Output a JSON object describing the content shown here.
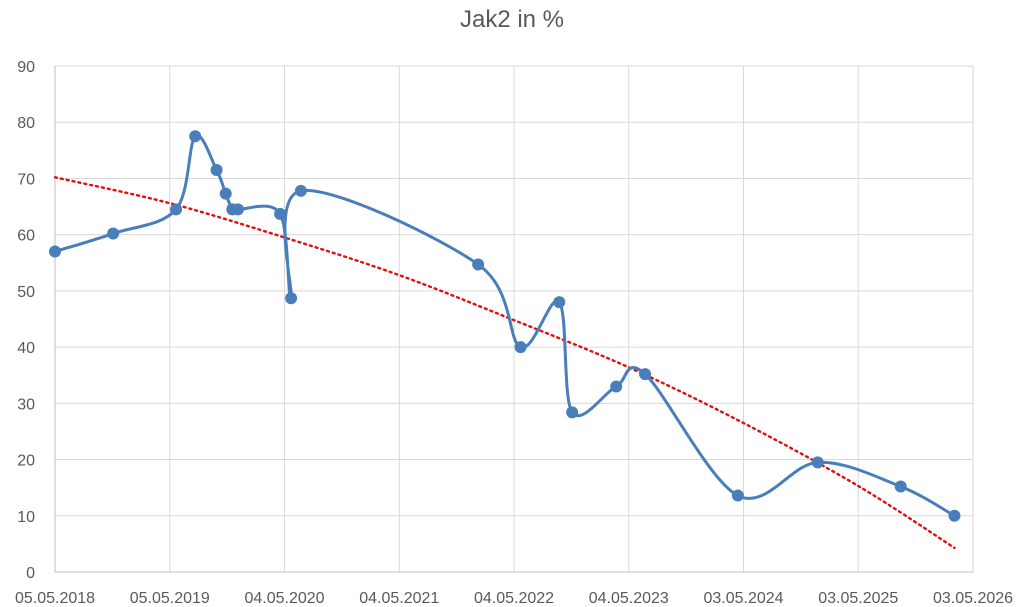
{
  "chart_data": {
    "type": "line",
    "title": "Jak2 in %",
    "xlabel": "",
    "ylabel": "",
    "ylim": [
      0,
      90
    ],
    "y_ticks": [
      0,
      10,
      20,
      30,
      40,
      50,
      60,
      70,
      80,
      90
    ],
    "x_tick_labels": [
      "05.05.2018",
      "05.05.2019",
      "04.05.2020",
      "04.05.2021",
      "04.05.2022",
      "04.05.2023",
      "03.05.2024",
      "03.05.2025",
      "03.05.2026"
    ],
    "xlim": [
      "2018-05-05",
      "2026-05-03"
    ],
    "grid": true,
    "series": [
      {
        "color": "#4a7ebb",
        "smooth": true,
        "markers": true,
        "points": [
          {
            "x": "2018-05-05",
            "y": 57
          },
          {
            "x": "2018-11-06",
            "y": 60.2
          },
          {
            "x": "2019-05-25",
            "y": 64.5
          },
          {
            "x": "2019-07-25",
            "y": 77.5
          },
          {
            "x": "2019-10-01",
            "y": 71.5
          },
          {
            "x": "2019-10-30",
            "y": 67.3
          },
          {
            "x": "2019-11-20",
            "y": 64.5
          },
          {
            "x": "2019-12-08",
            "y": 64.5
          },
          {
            "x": "2020-04-20",
            "y": 63.7
          },
          {
            "x": "2020-05-25",
            "y": 48.7
          },
          {
            "x": "2020-06-25",
            "y": 67.8
          },
          {
            "x": "2022-01-10",
            "y": 54.7
          },
          {
            "x": "2022-05-25",
            "y": 40
          },
          {
            "x": "2022-09-25",
            "y": 48
          },
          {
            "x": "2022-11-05",
            "y": 28.4
          },
          {
            "x": "2023-03-25",
            "y": 33
          },
          {
            "x": "2023-06-25",
            "y": 35.2
          },
          {
            "x": "2024-04-15",
            "y": 13.6
          },
          {
            "x": "2024-12-25",
            "y": 19.5
          },
          {
            "x": "2025-09-15",
            "y": 15.2
          },
          {
            "x": "2026-03-05",
            "y": 10
          }
        ]
      }
    ],
    "trendline": {
      "style": "dotted",
      "color": "#e01010",
      "type": "polynomial",
      "points": [
        {
          "x": "2018-05-05",
          "y": 70.2
        },
        {
          "x": "2019-05-05",
          "y": 65.6
        },
        {
          "x": "2020-05-04",
          "y": 59.5
        },
        {
          "x": "2021-05-04",
          "y": 52.8
        },
        {
          "x": "2022-05-04",
          "y": 44.8
        },
        {
          "x": "2023-05-04",
          "y": 36.4
        },
        {
          "x": "2024-05-03",
          "y": 26.5
        },
        {
          "x": "2025-05-03",
          "y": 15.3
        },
        {
          "x": "2026-03-05",
          "y": 4.3
        }
      ]
    }
  }
}
